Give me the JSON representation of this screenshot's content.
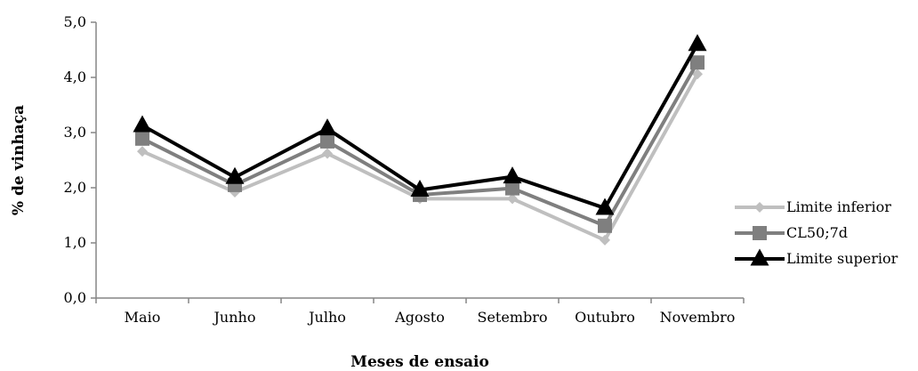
{
  "chart_data": {
    "type": "line",
    "categories": [
      "Maio",
      "Junho",
      "Julho",
      "Agosto",
      "Setembro",
      "Outubro",
      "Novembro"
    ],
    "series": [
      {
        "name": "Limite inferior",
        "values": [
          2.66,
          1.92,
          2.62,
          1.8,
          1.8,
          1.05,
          4.06
        ],
        "color": "#bfbfbf",
        "marker": "diamond"
      },
      {
        "name": "CL50;7d",
        "values": [
          2.89,
          2.05,
          2.84,
          1.87,
          1.99,
          1.31,
          4.27
        ],
        "color": "#7f7f7f",
        "marker": "square"
      },
      {
        "name": "Limite superior",
        "values": [
          3.13,
          2.19,
          3.07,
          1.96,
          2.2,
          1.63,
          4.6
        ],
        "color": "#000000",
        "marker": "triangle"
      }
    ],
    "ylim": [
      0,
      5
    ],
    "yticks": [
      "0,0",
      "1,0",
      "2,0",
      "3,0",
      "4,0",
      "5,0"
    ],
    "xlabel": "Meses de ensaio",
    "ylabel": "% de vinhaça",
    "legend_position": "right",
    "grid": false
  }
}
